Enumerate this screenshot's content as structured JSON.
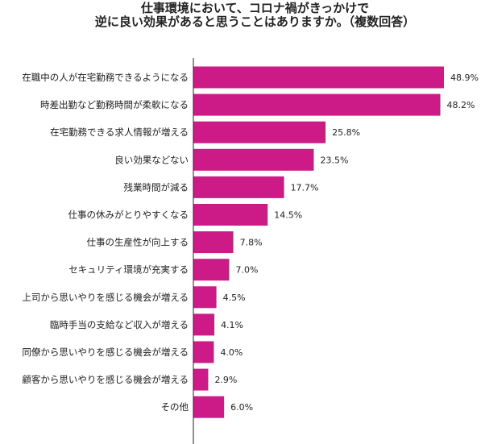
{
  "chart_data": {
    "type": "bar",
    "orientation": "horizontal",
    "title": [
      "仕事環境において、コロナ禍がきっかけで",
      "逆に良い効果があると思うことはありますか。（複数回答）"
    ],
    "unit": "%",
    "bar_color": "#cc1a87",
    "categories": [
      "在職中の人が在宅勤務できるようになる",
      "時差出勤など勤務時間が柔軟になる",
      "在宅勤務できる求人情報が増える",
      "良い効果などない",
      "残業時間が減る",
      "仕事の休みがとりやすくなる",
      "仕事の生産性が向上する",
      "セキュリティ環境が充実する",
      "上司から思いやりを感じる機会が増える",
      "臨時手当の支給など収入が増える",
      "同僚から思いやりを感じる機会が増える",
      "顧客から思いやりを感じる機会が増える",
      "その他"
    ],
    "values": [
      48.9,
      48.2,
      25.8,
      23.5,
      17.7,
      14.5,
      7.8,
      7.0,
      4.5,
      4.1,
      4.0,
      2.9,
      6.0
    ],
    "value_labels": [
      "48.9%",
      "48.2%",
      "25.8%",
      "23.5%",
      "17.7%",
      "14.5%",
      "7.8%",
      "7.0%",
      "4.5%",
      "4.1%",
      "4.0%",
      "2.9%",
      "6.0%"
    ],
    "xlim": [
      0,
      48.9
    ],
    "grid": false,
    "legend": "none"
  }
}
